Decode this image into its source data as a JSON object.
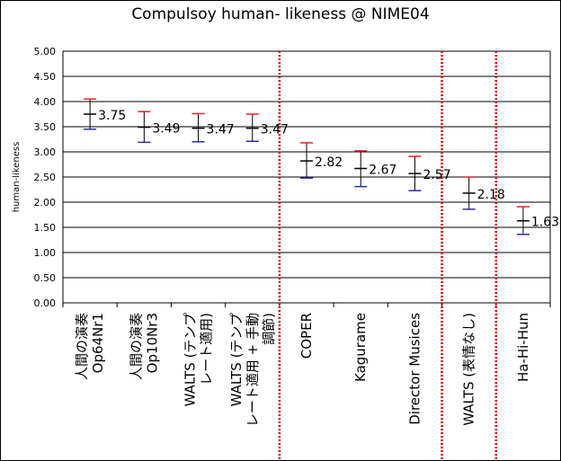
{
  "chart_data": {
    "type": "error-bar",
    "title": "Compulsoy human- likeness @ NIME04",
    "ylabel": "human-likeness",
    "ylim": [
      0,
      5
    ],
    "yticks": [
      "0.00",
      "0.50",
      "1.00",
      "1.50",
      "2.00",
      "2.50",
      "3.00",
      "3.50",
      "4.00",
      "4.50",
      "5.00"
    ],
    "grid": true,
    "categories": [
      [
        "人間の演奏",
        "Op64Nr1"
      ],
      [
        "人間の演奏",
        "Op10Nr3"
      ],
      [
        "WALTS (テンプ",
        "レート適用)"
      ],
      [
        "WALTS (テンプ",
        "レート適用 + 手動",
        "調節)"
      ],
      [
        "COPER"
      ],
      [
        "Kagurame"
      ],
      [
        "Director Musices"
      ],
      [
        "WALTS (表情なし)"
      ],
      [
        "Ha-Hi-Hun"
      ]
    ],
    "values": [
      3.75,
      3.49,
      3.47,
      3.47,
      2.82,
      2.67,
      2.57,
      2.18,
      1.63
    ],
    "value_labels": [
      "3.75",
      "3.49",
      "3.47",
      "3.47",
      "2.82",
      "2.67",
      "2.57",
      "2.18",
      "1.63"
    ],
    "upper": [
      4.05,
      3.8,
      3.76,
      3.75,
      3.18,
      3.02,
      2.91,
      2.5,
      1.91
    ],
    "lower": [
      3.45,
      3.19,
      3.2,
      3.21,
      2.48,
      2.31,
      2.23,
      1.86,
      1.36
    ],
    "separators_after": [
      3,
      6,
      7
    ],
    "colors": {
      "mean_line": "#000000",
      "upper_cap": "#e8202a",
      "lower_cap": "#2a2aa8",
      "separator": "#e00000",
      "grid": "#000000"
    }
  }
}
